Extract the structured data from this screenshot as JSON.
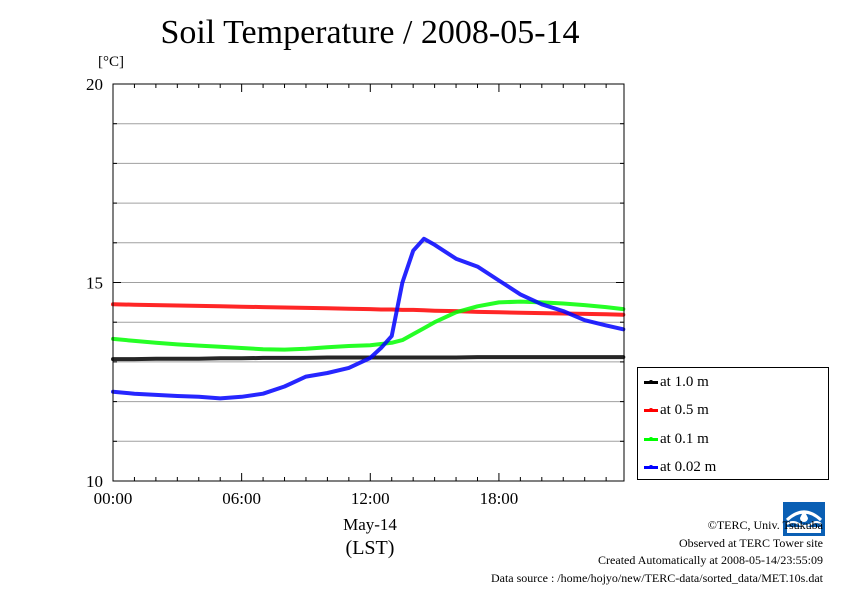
{
  "title": "Soil Temperature / 2008-05-14",
  "unit_label": "[°C]",
  "xaxis": {
    "date_label": "May-14",
    "tz_label": "(LST)"
  },
  "credits": [
    "©TERC, Univ. Tsukuba",
    "Observed at TERC Tower site",
    "Created Automatically at 2008-05-14/23:55:09",
    "Data source : /home/hojyo/new/TERC-data/sorted_data/MET.10s.dat"
  ],
  "logo_name": "terc-logo",
  "chart_data": {
    "type": "line",
    "title": "Soil Temperature / 2008-05-14",
    "ylabel": "[°C]",
    "xlabel": "May-14 (LST)",
    "xlim": [
      "00:00",
      "23:50"
    ],
    "ylim": [
      10,
      20
    ],
    "yticks_labeled": [
      10,
      15,
      20
    ],
    "yticks_minor": [
      11,
      12,
      13,
      14,
      16,
      17,
      18,
      19
    ],
    "xticks": [
      "00:00",
      "06:00",
      "12:00",
      "18:00"
    ],
    "grid": true,
    "legend_position": "right, below plot top",
    "x_hours": [
      0,
      1,
      2,
      3,
      4,
      5,
      6,
      7,
      8,
      9,
      10,
      11,
      12,
      12.5,
      13,
      13.5,
      14,
      14.5,
      15,
      16,
      17,
      18,
      19,
      20,
      21,
      22,
      23,
      23.8
    ],
    "series": [
      {
        "name": "at 1.0 m",
        "color": "#000000",
        "values": [
          13.07,
          13.07,
          13.08,
          13.08,
          13.08,
          13.09,
          13.09,
          13.1,
          13.1,
          13.1,
          13.11,
          13.11,
          13.11,
          13.11,
          13.11,
          13.11,
          13.11,
          13.11,
          13.11,
          13.11,
          13.12,
          13.12,
          13.12,
          13.12,
          13.12,
          13.12,
          13.12,
          13.12
        ]
      },
      {
        "name": "at 0.5 m",
        "color": "#ff0000",
        "values": [
          14.45,
          14.44,
          14.43,
          14.42,
          14.41,
          14.4,
          14.39,
          14.38,
          14.37,
          14.36,
          14.35,
          14.34,
          14.33,
          14.32,
          14.32,
          14.31,
          14.31,
          14.3,
          14.29,
          14.28,
          14.26,
          14.25,
          14.24,
          14.23,
          14.22,
          14.21,
          14.2,
          14.19
        ]
      },
      {
        "name": "at 0.1 m",
        "color": "#00ff00",
        "values": [
          13.58,
          13.53,
          13.48,
          13.44,
          13.41,
          13.38,
          13.35,
          13.32,
          13.31,
          13.33,
          13.37,
          13.4,
          13.42,
          13.45,
          13.48,
          13.55,
          13.7,
          13.85,
          14.0,
          14.25,
          14.4,
          14.5,
          14.52,
          14.5,
          14.47,
          14.43,
          14.38,
          14.33
        ]
      },
      {
        "name": "at 0.02 m",
        "color": "#0000ff",
        "values": [
          12.25,
          12.2,
          12.17,
          12.14,
          12.12,
          12.08,
          12.12,
          12.2,
          12.38,
          12.63,
          12.72,
          12.85,
          13.1,
          13.35,
          13.65,
          15.0,
          15.8,
          16.1,
          15.95,
          15.6,
          15.4,
          15.05,
          14.7,
          14.45,
          14.28,
          14.05,
          13.92,
          13.82
        ]
      }
    ]
  }
}
